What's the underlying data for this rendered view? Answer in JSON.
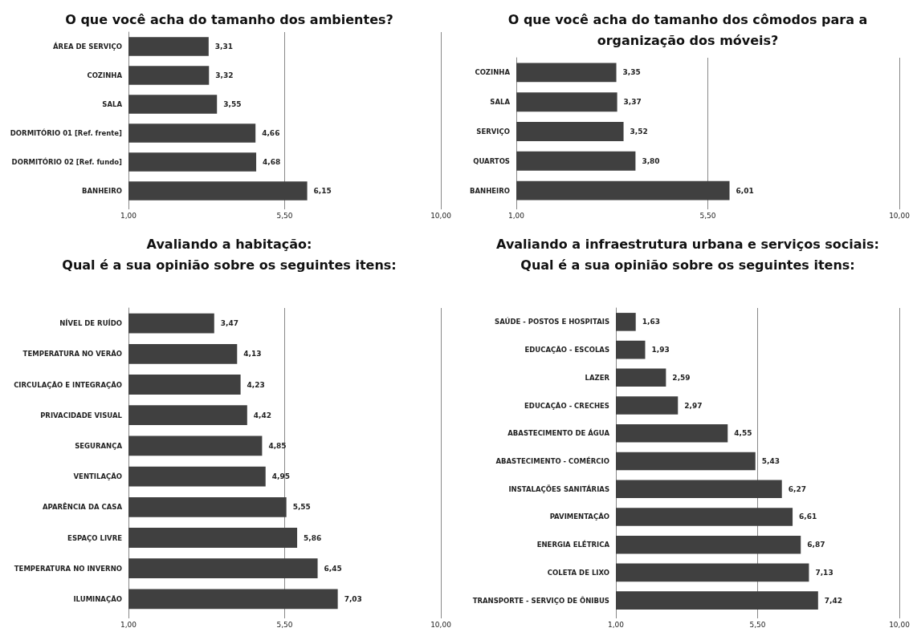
{
  "chart_data": [
    {
      "type": "bar",
      "orientation": "horizontal",
      "title": "O que você acha do tamanho dos ambientes?",
      "categories": [
        "ÁREA DE SERVIÇO",
        "COZINHA",
        "SALA",
        "DORMITÓRIO 01 [Ref. frente]",
        "DORMITÓRIO 02 [Ref. fundo]",
        "BANHEIRO"
      ],
      "values": [
        3.31,
        3.32,
        3.55,
        4.66,
        4.68,
        6.15
      ],
      "value_labels": [
        "3,31",
        "3,32",
        "3,55",
        "4,66",
        "4,68",
        "6,15"
      ],
      "color": "#404040",
      "xlim": [
        1,
        10
      ],
      "xticks": [
        {
          "value": 1,
          "label": "1,00"
        },
        {
          "value": 5.5,
          "label": "5,50"
        },
        {
          "value": 10,
          "label": "10,00"
        }
      ],
      "grid": "x"
    },
    {
      "type": "bar",
      "orientation": "horizontal",
      "title": "O que você acha do tamanho dos cômodos para a\norganização dos móveis?",
      "categories": [
        "COZINHA",
        "SALA",
        "SERVIÇO",
        "QUARTOS",
        "BANHEIRO"
      ],
      "values": [
        3.35,
        3.37,
        3.52,
        3.8,
        6.01
      ],
      "value_labels": [
        "3,35",
        "3,37",
        "3,52",
        "3,80",
        "6,01"
      ],
      "color": "#404040",
      "xlim": [
        1,
        10
      ],
      "xticks": [
        {
          "value": 1,
          "label": "1,00"
        },
        {
          "value": 5.5,
          "label": "5,50"
        },
        {
          "value": 10,
          "label": "10,00"
        }
      ],
      "grid": "x"
    },
    {
      "type": "bar",
      "orientation": "horizontal",
      "title": "Avaliando a habitação:\nQual é a sua opinião sobre os seguintes itens:",
      "categories": [
        "NÍVEL DE RUÍDO",
        "TEMPERATURA NO VERÃO",
        "CIRCULAÇÃO E INTEGRAÇÃO",
        "PRIVACIDADE VISUAL",
        "SEGURANÇA",
        "VENTILAÇÃO",
        "APARÊNCIA DA CASA",
        "ESPAÇO LIVRE",
        "TEMPERATURA NO INVERNO",
        "ILUMINAÇÃO"
      ],
      "values": [
        3.47,
        4.13,
        4.23,
        4.42,
        4.85,
        4.95,
        5.55,
        5.86,
        6.45,
        7.03
      ],
      "value_labels": [
        "3,47",
        "4,13",
        "4,23",
        "4,42",
        "4,85",
        "4,95",
        "5,55",
        "5,86",
        "6,45",
        "7,03"
      ],
      "color": "#404040",
      "xlim": [
        1,
        10
      ],
      "xticks": [
        {
          "value": 1,
          "label": "1,00"
        },
        {
          "value": 5.5,
          "label": "5,50"
        },
        {
          "value": 10,
          "label": "10,00"
        }
      ],
      "grid": "x"
    },
    {
      "type": "bar",
      "orientation": "horizontal",
      "title": "Avaliando a infraestrutura urbana e serviços sociais:\nQual é a sua opinião sobre os seguintes itens:",
      "categories": [
        "SAÚDE - POSTOS E HOSPITAIS",
        "EDUCAÇÃO - ESCOLAS",
        "LAZER",
        "EDUCAÇÃO - CRECHES",
        "ABASTECIMENTO DE ÁGUA",
        "ABASTECIMENTO - COMÉRCIO",
        "INSTALAÇÕES SANITÁRIAS",
        "PAVIMENTAÇÃO",
        "ENERGIA ELÉTRICA",
        "COLETA DE LIXO",
        "TRANSPORTE - SERVIÇO DE ÔNIBUS"
      ],
      "values": [
        1.63,
        1.93,
        2.59,
        2.97,
        4.55,
        5.43,
        6.27,
        6.61,
        6.87,
        7.13,
        7.42
      ],
      "value_labels": [
        "1,63",
        "1,93",
        "2,59",
        "2,97",
        "4,55",
        "5,43",
        "6,27",
        "6,61",
        "6,87",
        "7,13",
        "7,42"
      ],
      "color": "#404040",
      "xlim": [
        1,
        10
      ],
      "xticks": [
        {
          "value": 1,
          "label": "1,00"
        },
        {
          "value": 5.5,
          "label": "5,50"
        },
        {
          "value": 10,
          "label": "10,00"
        }
      ],
      "grid": "x"
    }
  ]
}
